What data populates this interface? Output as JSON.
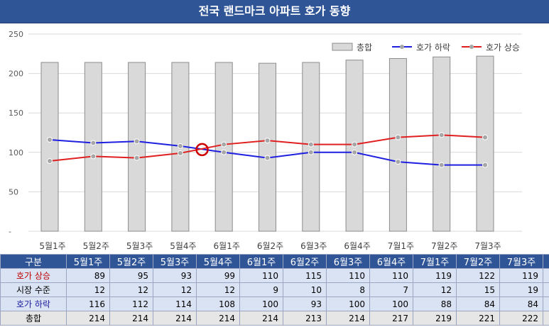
{
  "title": "전국 랜드마크 아파트 호가 동향",
  "chart_data": {
    "type": "bar",
    "categories": [
      "5월1주",
      "5월2주",
      "5월3주",
      "5월4주",
      "6월1주",
      "6월2주",
      "6월3주",
      "6월4주",
      "7월1주",
      "7월2주",
      "7월3주"
    ],
    "ylim": [
      0,
      250
    ],
    "yticks": [
      "-",
      "50",
      "100",
      "150",
      "200",
      "250"
    ],
    "grid": true,
    "legend": "top-right",
    "series": [
      {
        "name": "총합",
        "kind": "bar",
        "color": "#d9d9d9",
        "values": [
          214,
          214,
          214,
          214,
          214,
          213,
          214,
          217,
          219,
          221,
          222
        ]
      },
      {
        "name": "호가 하락",
        "kind": "line",
        "color": "#1f1fe0",
        "values": [
          116,
          112,
          114,
          108,
          100,
          93,
          100,
          100,
          88,
          84,
          84
        ]
      },
      {
        "name": "호가 상승",
        "kind": "line",
        "color": "#e02020",
        "values": [
          89,
          95,
          93,
          99,
          110,
          115,
          110,
          110,
          119,
          122,
          119
        ]
      }
    ],
    "marker_point": {
      "x": 3.5,
      "y": 103.5,
      "color": "#cc0000"
    }
  },
  "table": {
    "header_label": "구분",
    "rows": [
      {
        "label": "호가 상승",
        "style": "up",
        "values": [
          89,
          95,
          93,
          99,
          110,
          115,
          110,
          110,
          119,
          122,
          119
        ]
      },
      {
        "label": "시장 수준",
        "style": "level",
        "values": [
          12,
          12,
          12,
          12,
          9,
          10,
          8,
          7,
          12,
          15,
          19
        ]
      },
      {
        "label": "호가 하락",
        "style": "down",
        "values": [
          116,
          112,
          114,
          108,
          100,
          93,
          100,
          100,
          88,
          84,
          84
        ]
      },
      {
        "label": "총합",
        "style": "total",
        "values": [
          214,
          214,
          214,
          214,
          214,
          213,
          214,
          217,
          219,
          221,
          222
        ]
      }
    ]
  }
}
